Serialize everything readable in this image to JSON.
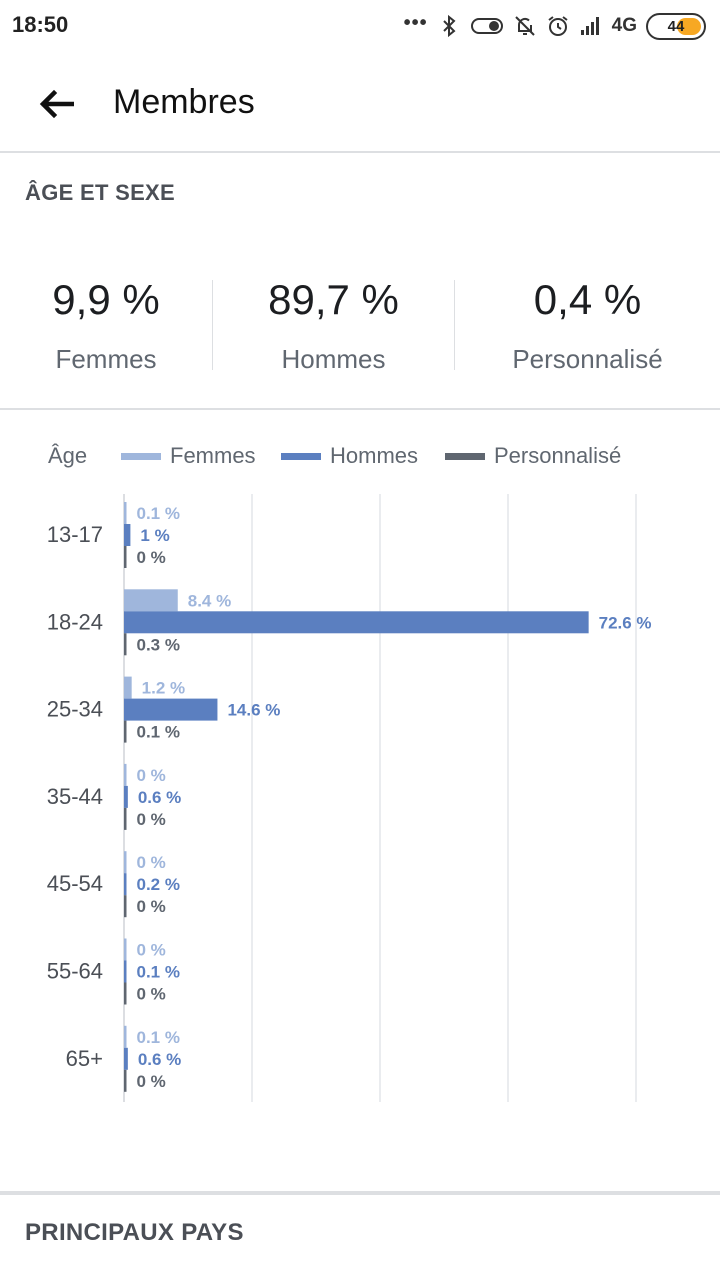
{
  "status_bar": {
    "time": "18:50",
    "network": "4G",
    "battery": "44",
    "icons": [
      "more-dots-icon",
      "bluetooth-icon",
      "toggle-icon",
      "bell-off-icon",
      "alarm-icon",
      "signal-icon",
      "battery-icon"
    ]
  },
  "header": {
    "back_icon": "arrow-left-icon",
    "title": "Membres"
  },
  "age_sex": {
    "section_title": "ÂGE ET SEXE",
    "stats": [
      {
        "value": "9,9 %",
        "label": "Femmes"
      },
      {
        "value": "89,7 %",
        "label": "Hommes"
      },
      {
        "value": "0,4 %",
        "label": "Personnalisé"
      }
    ]
  },
  "legend": {
    "age_title": "Âge",
    "items": [
      "Femmes",
      "Hommes",
      "Personnalisé"
    ]
  },
  "colors": {
    "femmes": "#9fb6dc",
    "hommes": "#5b7fc0",
    "personnalise": "#5f6670",
    "grid": "#e4e6ea"
  },
  "chart_data": {
    "type": "bar",
    "orientation": "horizontal",
    "categories": [
      "13-17",
      "18-24",
      "25-34",
      "35-44",
      "45-54",
      "55-64",
      "65+"
    ],
    "series": [
      {
        "name": "Femmes",
        "values": [
          0.1,
          8.4,
          1.2,
          0,
          0,
          0,
          0.1
        ],
        "labels": [
          "0.1 %",
          "8.4 %",
          "1.2 %",
          "0 %",
          "0 %",
          "0 %",
          "0.1 %"
        ]
      },
      {
        "name": "Hommes",
        "values": [
          1,
          72.6,
          14.6,
          0.6,
          0.2,
          0.1,
          0.6
        ],
        "labels": [
          "1 %",
          "72.6 %",
          "14.6 %",
          "0.6 %",
          "0.2 %",
          "0.1 %",
          "0.6 %"
        ]
      },
      {
        "name": "Personnalisé",
        "values": [
          0,
          0.3,
          0.1,
          0,
          0,
          0,
          0
        ],
        "labels": [
          "0 %",
          "0.3 %",
          "0.1 %",
          "0 %",
          "0 %",
          "0 %",
          "0 %"
        ]
      }
    ],
    "xlim": [
      0,
      80
    ],
    "grid": true,
    "legend_position": "top"
  },
  "countries": {
    "section_title": "PRINCIPAUX PAYS"
  }
}
